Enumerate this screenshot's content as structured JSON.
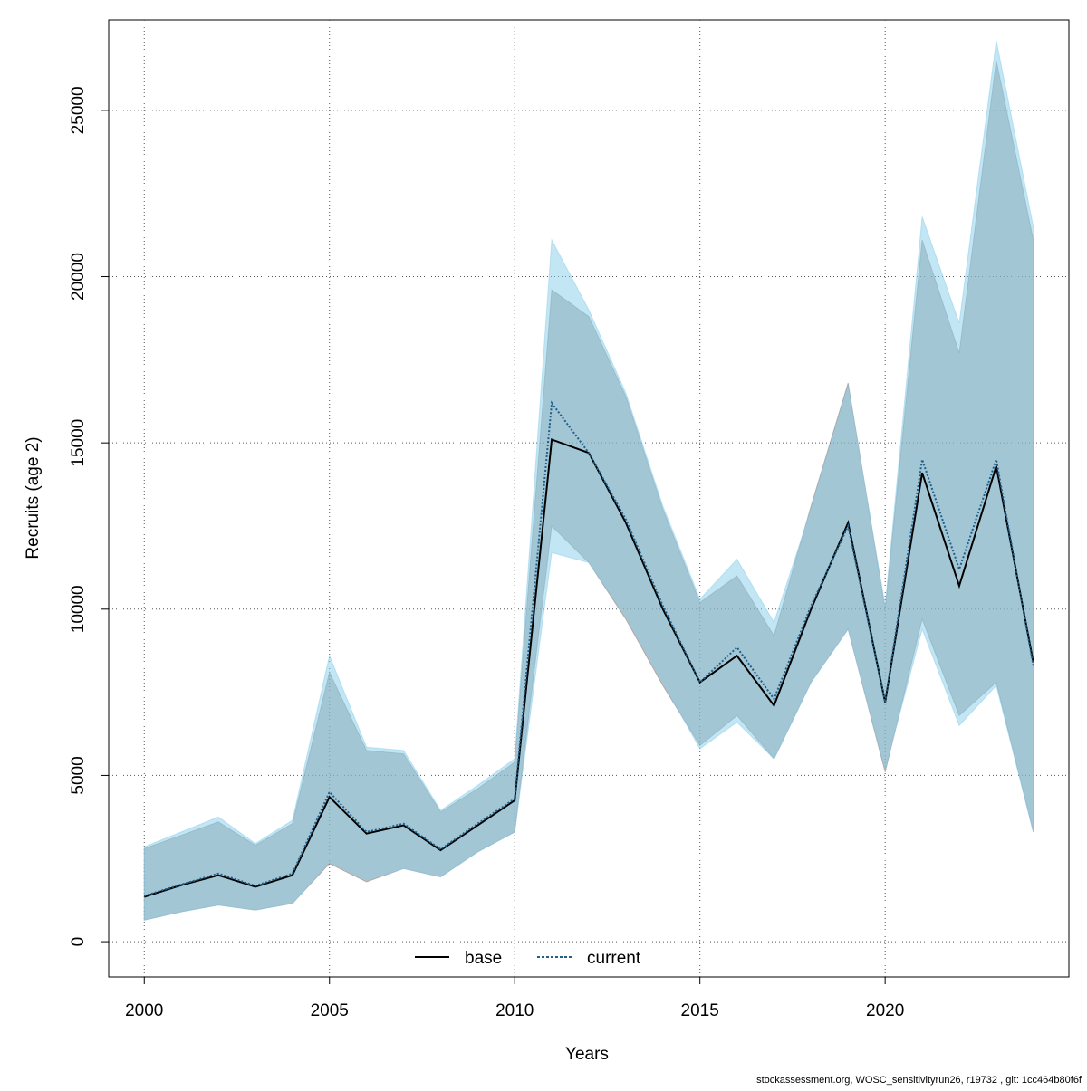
{
  "chart_data": {
    "type": "line",
    "x_label": "Years",
    "y_label": "Recruits (age 2)",
    "footer": "stockassessment.org, WOSC_sensitivityrun26, r19732 , git: 1cc464b80f6f",
    "x": [
      2000,
      2001,
      2002,
      2003,
      2004,
      2005,
      2006,
      2007,
      2008,
      2009,
      2010,
      2011,
      2012,
      2013,
      2014,
      2015,
      2016,
      2017,
      2018,
      2019,
      2020,
      2021,
      2022,
      2023,
      2024
    ],
    "series": [
      {
        "name": "base",
        "color": "#000000",
        "dash": false,
        "band_color": "rgba(128,128,128,0.5)",
        "values": [
          1350,
          1700,
          2000,
          1650,
          2000,
          4350,
          3250,
          3500,
          2750,
          3500,
          4250,
          15100,
          14700,
          12600,
          10000,
          7800,
          8600,
          7100,
          10000,
          12600,
          7200,
          14100,
          10700,
          14300,
          8400
        ],
        "lower": [
          650,
          900,
          1100,
          950,
          1150,
          2350,
          1800,
          2200,
          1950,
          2700,
          3300,
          12500,
          11400,
          9700,
          7700,
          5900,
          6800,
          5500,
          7800,
          9400,
          5100,
          9700,
          6800,
          7800,
          3300
        ],
        "upper": [
          2800,
          3200,
          3600,
          2900,
          3550,
          8100,
          5750,
          5650,
          3900,
          4600,
          5400,
          19600,
          18800,
          16400,
          13000,
          10200,
          11000,
          9200,
          13100,
          16800,
          10000,
          21100,
          17700,
          26500,
          21100
        ]
      },
      {
        "name": "current",
        "color": "#1f5f8a",
        "dash": true,
        "band_color": "rgba(135,206,235,0.5)",
        "values": [
          1380,
          1720,
          2050,
          1680,
          2050,
          4500,
          3300,
          3550,
          2780,
          3550,
          4300,
          16200,
          14700,
          12700,
          10100,
          7800,
          8850,
          7300,
          10100,
          12500,
          7200,
          14500,
          11200,
          14500,
          8300
        ],
        "lower": [
          650,
          900,
          1100,
          950,
          1150,
          2400,
          1850,
          2200,
          1950,
          2700,
          3300,
          11700,
          11400,
          9800,
          7800,
          5800,
          6600,
          5500,
          7800,
          9400,
          5200,
          9400,
          6500,
          7700,
          3300
        ],
        "upper": [
          2850,
          3300,
          3750,
          2950,
          3650,
          8600,
          5850,
          5750,
          3950,
          4700,
          5500,
          21100,
          19000,
          16500,
          13100,
          10300,
          11500,
          9600,
          13000,
          16700,
          10100,
          21800,
          18600,
          27100,
          21500
        ]
      }
    ],
    "xlim": [
      1999.04,
      2024.96
    ],
    "xticks": [
      2000,
      2005,
      2010,
      2015,
      2020
    ],
    "ylim": [
      -1060,
      27720
    ],
    "yticks": [
      0,
      5000,
      10000,
      15000,
      20000,
      25000
    ],
    "grid": true,
    "legend": "bottom"
  }
}
